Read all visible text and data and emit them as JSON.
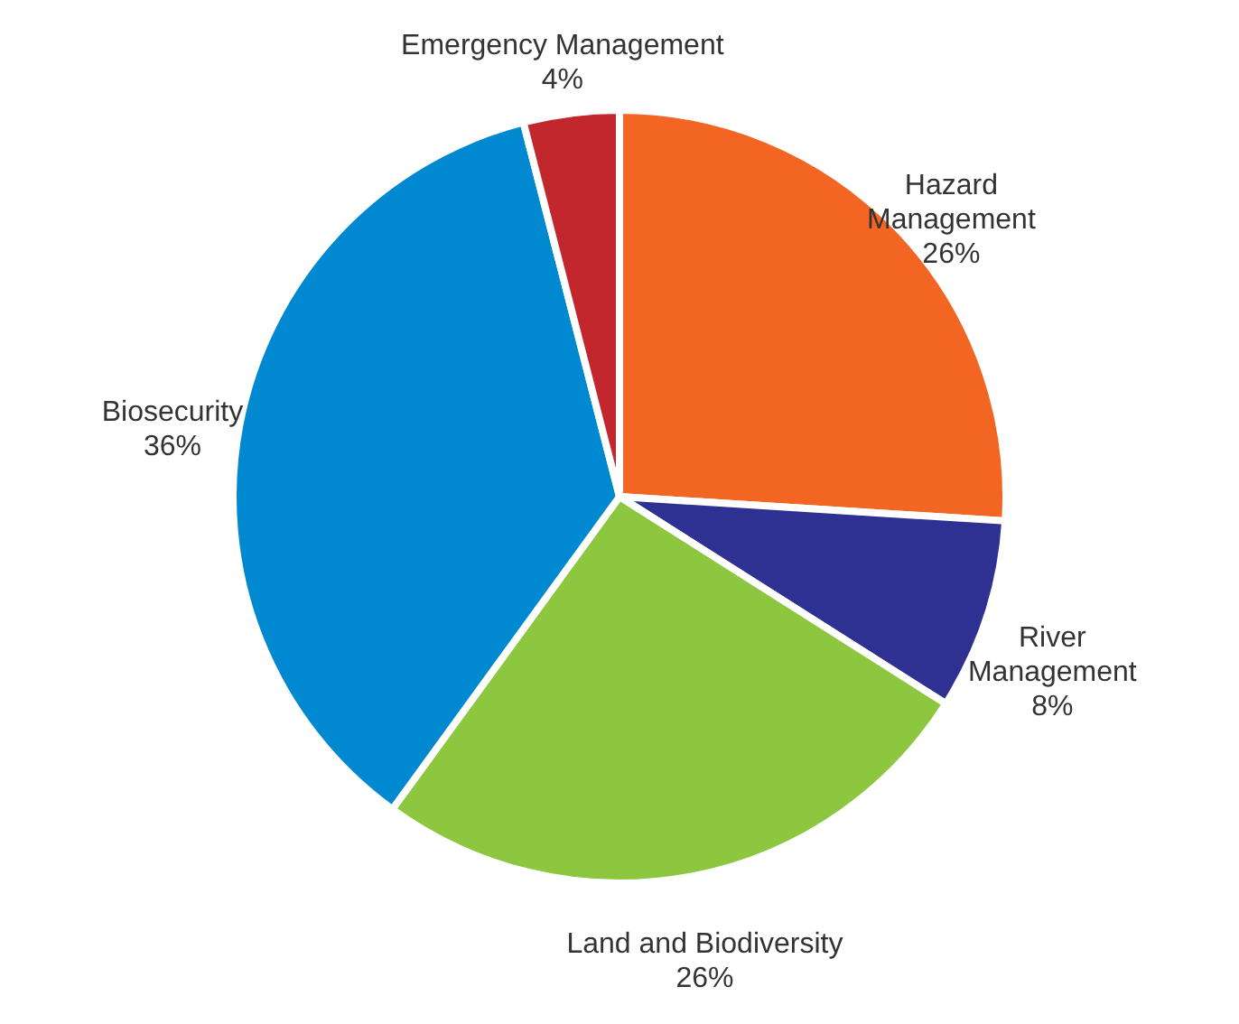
{
  "chart_data": {
    "type": "pie",
    "categories": [
      "Hazard Management",
      "River Management",
      "Land and Biodiversity",
      "Biosecurity",
      "Emergency Management"
    ],
    "values": [
      26,
      8,
      26,
      36,
      4
    ],
    "colors": [
      "#f26522",
      "#2e3192",
      "#8dc63f",
      "#0089d0",
      "#c1272d"
    ],
    "value_labels": [
      "26%",
      "8%",
      "26%",
      "36%",
      "4%"
    ]
  }
}
